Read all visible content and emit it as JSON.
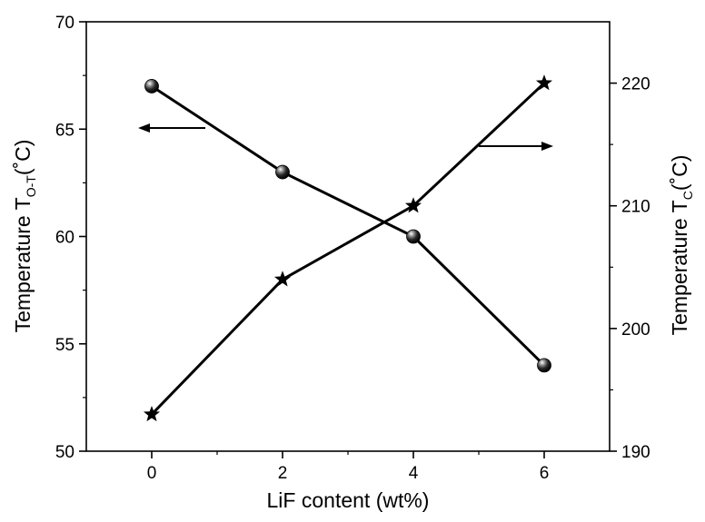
{
  "chart_data": {
    "type": "line",
    "x": [
      0,
      2,
      4,
      6
    ],
    "xlabel": "LiF content (wt%)",
    "xlim": [
      -1,
      7
    ],
    "xticks": [
      0,
      2,
      4,
      6
    ],
    "y_left": {
      "label_main": "Temperature T",
      "label_sub": "O-T",
      "label_unit": "(˚C)",
      "lim": [
        50,
        70
      ],
      "ticks": [
        50,
        55,
        60,
        65,
        70
      ]
    },
    "y_right": {
      "label_main": "Temperature T",
      "label_sub": "C",
      "label_unit": "(˚C)",
      "lim": [
        190,
        225
      ],
      "ticks": [
        190,
        200,
        210,
        220
      ]
    },
    "series": [
      {
        "axis": "left",
        "marker": "sphere",
        "values": [
          67,
          63,
          60,
          54
        ]
      },
      {
        "axis": "right",
        "marker": "star",
        "values": [
          193,
          204,
          210,
          220
        ]
      }
    ],
    "annotations": [
      {
        "type": "arrow",
        "direction": "left",
        "points_to_axis": "left"
      },
      {
        "type": "arrow",
        "direction": "right",
        "points_to_axis": "right"
      }
    ],
    "grid": false,
    "legend": "none",
    "colors": {
      "line": "#000000",
      "marker": "#000000"
    }
  }
}
